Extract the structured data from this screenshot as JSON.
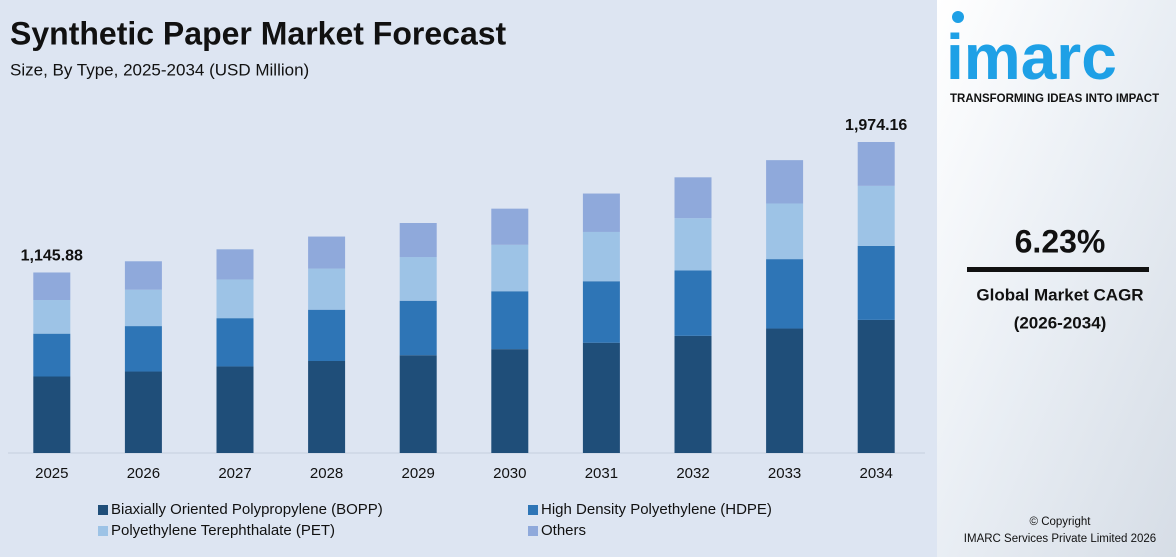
{
  "chart_data": {
    "type": "stacked-bar",
    "title": "Synthetic Paper Market Forecast",
    "subtitle": "Size, By Type, 2025-2034 (USD Million)",
    "categories": [
      "2025",
      "2026",
      "2027",
      "2028",
      "2029",
      "2030",
      "2031",
      "2032",
      "2033",
      "2034"
    ],
    "series": [
      {
        "name": "Biaxially Oriented Polypropylene (BOPP)",
        "color": "#1f4e79",
        "values": [
          485.6,
          517.2,
          549.5,
          584.0,
          620.5,
          659.2,
          700.0,
          743.8,
          790.1,
          845.0
        ]
      },
      {
        "name": "High Density Polyethylene (HDPE)",
        "color": "#2e75b6",
        "values": [
          271.9,
          288.4,
          306.4,
          325.6,
          346.0,
          367.6,
          390.3,
          414.8,
          440.6,
          469.8
        ]
      },
      {
        "name": "Polyethylene Terephthalate (PET)",
        "color": "#9dc3e6",
        "values": [
          213.6,
          231.2,
          245.7,
          261.1,
          277.4,
          294.7,
          312.9,
          332.5,
          353.2,
          381.0
        ]
      },
      {
        "name": "Others",
        "color": "#8fa9db",
        "values": [
          174.8,
          180.2,
          191.4,
          203.3,
          216.1,
          229.5,
          243.8,
          258.9,
          275.1,
          278.36
        ]
      }
    ],
    "total_labels": [
      {
        "category": "2025",
        "value": 1145.88,
        "label": "1,145.88"
      },
      {
        "category": "2034",
        "value": 1974.16,
        "label": "1,974.16"
      }
    ]
  },
  "sidebar": {
    "logo": "imarc",
    "tagline": "TRANSFORMING IDEAS INTO IMPACT",
    "cagr": "6.23%",
    "cagr_label": "Global Market CAGR",
    "cagr_period": "(2026-2034)",
    "copyright": "© Copyright",
    "company": "IMARC Services Private Limited 2026"
  }
}
